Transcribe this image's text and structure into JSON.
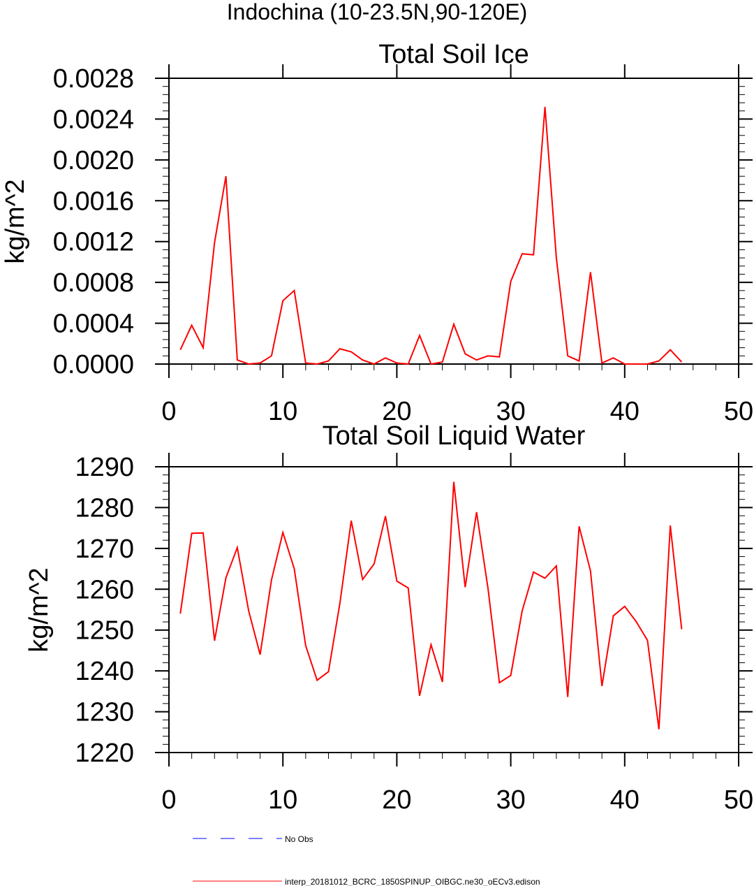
{
  "figure_title": "Indochina (10-23.5N,90-120E)",
  "legend": [
    {
      "label": "No Obs",
      "color": "#0000ff",
      "style": "dashed"
    },
    {
      "label": "interp_20181012_BCRC_1850SPINUP_OIBGC.ne30_oECv3.edison",
      "color": "#ff0000",
      "style": "solid"
    }
  ],
  "chart_data": [
    {
      "type": "line",
      "title": "Total Soil Ice",
      "xlabel": "",
      "ylabel": "kg/m^2",
      "xlim": [
        0,
        50
      ],
      "ylim": [
        0,
        0.0028
      ],
      "x_ticks": [
        "0",
        "10",
        "20",
        "30",
        "40",
        "50"
      ],
      "y_ticks": [
        "0.0000",
        "0.0004",
        "0.0008",
        "0.0012",
        "0.0016",
        "0.0020",
        "0.0024",
        "0.0028"
      ],
      "grid": false,
      "series": [
        {
          "color": "#ff0000",
          "x": [
            1,
            2,
            3,
            4,
            5,
            6,
            7,
            8,
            9,
            10,
            11,
            12,
            13,
            14,
            15,
            16,
            17,
            18,
            19,
            20,
            21,
            22,
            23,
            24,
            25,
            26,
            27,
            28,
            29,
            30,
            31,
            32,
            33,
            34,
            35,
            36,
            37,
            38,
            39,
            40,
            41,
            42,
            43,
            44,
            45
          ],
          "values": [
            0.00014,
            0.00038,
            0.00016,
            0.00119,
            0.00184,
            4e-05,
            0.0,
            1e-05,
            8e-05,
            0.00062,
            0.00072,
            1e-05,
            0.0,
            3e-05,
            0.00015,
            0.00012,
            4e-05,
            0.0,
            6e-05,
            1e-05,
            0.0,
            0.00028,
            0.0,
            2e-05,
            0.00039,
            0.0001,
            4e-05,
            8e-05,
            7e-05,
            0.00081,
            0.00108,
            0.00107,
            0.00252,
            0.00104,
            8e-05,
            3e-05,
            0.0009,
            1e-05,
            6e-05,
            0.0,
            0.0,
            0.0,
            3e-05,
            0.00014,
            2e-05
          ]
        }
      ]
    },
    {
      "type": "line",
      "title": "Total Soil Liquid Water",
      "xlabel": "",
      "ylabel": "kg/m^2",
      "xlim": [
        0,
        50
      ],
      "ylim": [
        1220,
        1290
      ],
      "x_ticks": [
        "0",
        "10",
        "20",
        "30",
        "40",
        "50"
      ],
      "y_ticks": [
        "1220",
        "1230",
        "1240",
        "1250",
        "1260",
        "1270",
        "1280",
        "1290"
      ],
      "grid": false,
      "series": [
        {
          "color": "#ff0000",
          "x": [
            1,
            2,
            3,
            4,
            5,
            6,
            7,
            8,
            9,
            10,
            11,
            12,
            13,
            14,
            15,
            16,
            17,
            18,
            19,
            20,
            21,
            22,
            23,
            24,
            25,
            26,
            27,
            28,
            29,
            30,
            31,
            32,
            33,
            34,
            35,
            36,
            37,
            38,
            39,
            40,
            41,
            42,
            43,
            44,
            45
          ],
          "values": [
            1254,
            1273.7,
            1273.8,
            1247.4,
            1262.8,
            1270.2,
            1254.7,
            1244,
            1262.3,
            1273.9,
            1265,
            1246.2,
            1237.7,
            1239.8,
            1256.5,
            1276.8,
            1262.4,
            1266.2,
            1277.9,
            1262,
            1260.3,
            1233.9,
            1246.4,
            1237.3,
            1286.3,
            1260.5,
            1278.9,
            1260.2,
            1237.1,
            1238.9,
            1254.7,
            1264.2,
            1262.7,
            1265.7,
            1233.6,
            1275.4,
            1264.5,
            1236.3,
            1253.5,
            1255.8,
            1252.1,
            1247.5,
            1225.7,
            1275.6,
            1250.2
          ]
        }
      ]
    }
  ]
}
